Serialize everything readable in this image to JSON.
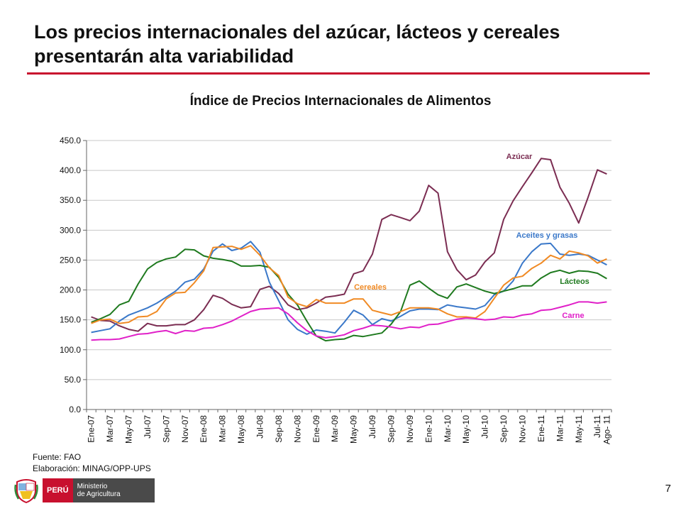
{
  "slide": {
    "title": "Los precios internacionales del azúcar, lácteos y cereales presentarán alta variabilidad",
    "page_number": "7"
  },
  "notes": {
    "source": "Fuente: FAO",
    "elaboration": "Elaboración: MINAG/OPP-UPS"
  },
  "logo": {
    "country": "PERÚ",
    "ministry_line1": "Ministerio",
    "ministry_line2": "de Agricultura"
  },
  "colors": {
    "title_rule": "#c8102e",
    "azucar": "#7b2d52",
    "aceites": "#3a78c9",
    "lacteos": "#1f7a1f",
    "cereales": "#f08a24",
    "carne": "#e020c8"
  },
  "chart_data": {
    "type": "line",
    "title": "Índice de Precios Internacionales de Alimentos",
    "ylim": [
      0,
      450
    ],
    "y_ticks": [
      "0.0",
      "50.0",
      "100.0",
      "150.0",
      "200.0",
      "250.0",
      "300.0",
      "350.0",
      "400.0",
      "450.0"
    ],
    "grid": "horizontal",
    "x": [
      "Ene-07",
      "Feb-07",
      "Mar-07",
      "Abr-07",
      "May-07",
      "Jun-07",
      "Jul-07",
      "Ago-07",
      "Sep-07",
      "Oct-07",
      "Nov-07",
      "Dic-07",
      "Ene-08",
      "Feb-08",
      "Mar-08",
      "Abr-08",
      "May-08",
      "Jun-08",
      "Jul-08",
      "Ago-08",
      "Sep-08",
      "Oct-08",
      "Nov-08",
      "Dic-08",
      "Ene-09",
      "Feb-09",
      "Mar-09",
      "Abr-09",
      "May-09",
      "Jun-09",
      "Jul-09",
      "Ago-09",
      "Sep-09",
      "Oct-09",
      "Nov-09",
      "Dic-09",
      "Ene-10",
      "Feb-10",
      "Mar-10",
      "Abr-10",
      "May-10",
      "Jun-10",
      "Jul-10",
      "Ago-10",
      "Sep-10",
      "Oct-10",
      "Nov-10",
      "Dic-10",
      "Ene-11",
      "Feb-11",
      "Mar-11",
      "Abr-11",
      "May-11",
      "Jun-11",
      "Jul-11",
      "Ago- 11"
    ],
    "x_tick_labels": [
      "Ene-07",
      "",
      "Mar-07",
      "",
      "May-07",
      "",
      "Jul-07",
      "",
      "Sep-07",
      "",
      "Nov-07",
      "",
      "Ene-08",
      "",
      "Mar-08",
      "",
      "May-08",
      "",
      "Jul-08",
      "",
      "Sep-08",
      "",
      "Nov-08",
      "",
      "Ene-09",
      "",
      "Mar-09",
      "",
      "May-09",
      "",
      "Jul-09",
      "",
      "Sep-09",
      "",
      "Nov-09",
      "",
      "Ene-10",
      "",
      "Mar-10",
      "",
      "May-10",
      "",
      "Jul-10",
      "",
      "Sep-10",
      "",
      "Nov-10",
      "",
      "Ene-11",
      "",
      "Mar-11",
      "",
      "May-11",
      "",
      "Jul-11",
      "Ago- 11"
    ],
    "series": [
      {
        "name": "Azúcar",
        "color": "#7b2d52",
        "values": [
          155,
          149,
          148,
          140,
          134,
          131,
          144,
          140,
          140,
          142,
          142,
          150,
          167,
          191,
          186,
          176,
          170,
          172,
          201,
          206,
          194,
          175,
          167,
          170,
          178,
          188,
          190,
          193,
          227,
          232,
          260,
          318,
          326,
          321,
          316,
          332,
          375,
          362,
          264,
          234,
          217,
          225,
          247,
          262,
          318,
          349,
          373,
          396,
          420,
          418,
          372,
          345,
          312,
          355,
          401,
          394
        ]
      },
      {
        "name": "Aceites y grasas",
        "color": "#3a78c9",
        "values": [
          129,
          132,
          135,
          148,
          158,
          164,
          170,
          178,
          188,
          198,
          213,
          218,
          235,
          265,
          277,
          266,
          270,
          281,
          263,
          213,
          182,
          150,
          134,
          126,
          133,
          131,
          128,
          146,
          166,
          158,
          142,
          152,
          148,
          156,
          165,
          168,
          168,
          167,
          175,
          172,
          170,
          168,
          174,
          192,
          198,
          215,
          245,
          264,
          277,
          278,
          260,
          258,
          260,
          258,
          250,
          242
        ]
      },
      {
        "name": "Lácteos",
        "color": "#1f7a1f",
        "values": [
          146,
          152,
          159,
          175,
          181,
          210,
          235,
          246,
          252,
          255,
          268,
          267,
          257,
          253,
          251,
          248,
          240,
          240,
          241,
          238,
          221,
          193,
          175,
          148,
          123,
          115,
          117,
          118,
          124,
          122,
          125,
          128,
          143,
          164,
          208,
          215,
          203,
          192,
          186,
          205,
          210,
          204,
          198,
          194,
          198,
          202,
          207,
          207,
          220,
          229,
          233,
          228,
          232,
          231,
          228,
          219
        ]
      },
      {
        "name": "Cereales",
        "color": "#f08a24",
        "values": [
          144,
          150,
          151,
          144,
          146,
          155,
          156,
          164,
          185,
          195,
          196,
          212,
          232,
          271,
          272,
          273,
          268,
          274,
          258,
          237,
          224,
          188,
          177,
          172,
          184,
          178,
          178,
          178,
          185,
          185,
          166,
          162,
          158,
          164,
          170,
          170,
          170,
          168,
          160,
          155,
          155,
          153,
          164,
          186,
          208,
          220,
          223,
          236,
          245,
          258,
          252,
          265,
          262,
          257,
          245,
          252
        ]
      },
      {
        "name": "Carne",
        "color": "#e020c8",
        "values": [
          116,
          117,
          117,
          118,
          122,
          126,
          127,
          130,
          132,
          127,
          132,
          131,
          136,
          137,
          142,
          148,
          156,
          164,
          168,
          169,
          170,
          160,
          145,
          132,
          123,
          120,
          122,
          125,
          132,
          136,
          141,
          140,
          138,
          135,
          138,
          137,
          142,
          143,
          147,
          151,
          153,
          152,
          150,
          151,
          155,
          154,
          158,
          160,
          166,
          167,
          171,
          175,
          180,
          180,
          178,
          180
        ]
      }
    ],
    "annotations": [
      "Azúcar",
      "Aceites y grasas",
      "Lácteos",
      "Cereales",
      "Carne"
    ]
  }
}
